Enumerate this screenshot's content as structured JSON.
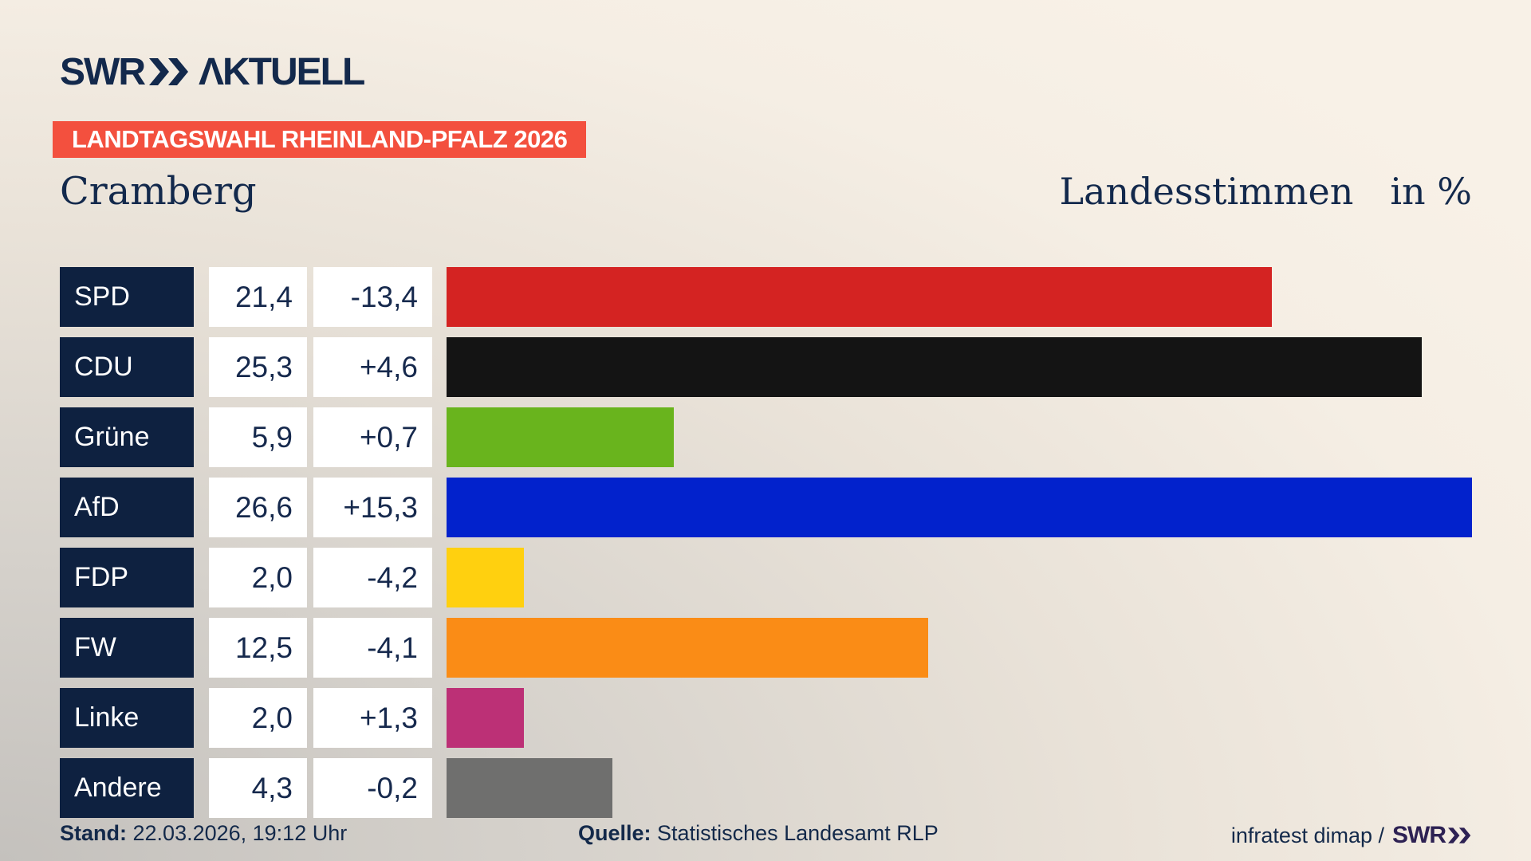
{
  "logo": {
    "swr": "SWR",
    "aktuell": "ΛKTUELL"
  },
  "header": {
    "banner": "LANDTAGSWAHL RHEINLAND-PFALZ 2026",
    "municipality": "Cramberg",
    "measure_label": "Landesstimmen",
    "unit_label": "in %"
  },
  "chart_data": {
    "type": "bar",
    "orientation": "horizontal",
    "title": "Landesstimmen in %",
    "xlim": [
      0,
      26.6
    ],
    "grid": false,
    "legend": "none",
    "categories": [
      "SPD",
      "CDU",
      "Grüne",
      "AfD",
      "FDP",
      "FW",
      "Linke",
      "Andere"
    ],
    "values": [
      21.4,
      25.3,
      5.9,
      26.6,
      2.0,
      12.5,
      2.0,
      4.3
    ],
    "value_labels": [
      "21,4",
      "25,3",
      "5,9",
      "26,6",
      "2,0",
      "12,5",
      "2,0",
      "4,3"
    ],
    "deltas": [
      -13.4,
      4.6,
      0.7,
      15.3,
      -4.2,
      -4.1,
      1.3,
      -0.2
    ],
    "delta_labels": [
      "-13,4",
      "+4,6",
      "+0,7",
      "+15,3",
      "-4,2",
      "-4,1",
      "+1,3",
      "-0,2"
    ],
    "bar_colors": [
      "#d42322",
      "#141414",
      "#69b41d",
      "#0222cc",
      "#ffd00f",
      "#fa8c16",
      "#bc3076",
      "#6f6f6e"
    ]
  },
  "footer": {
    "stand_label": "Stand:",
    "stand_value": "22.03.2026, 19:12 Uhr",
    "quelle_label": "Quelle:",
    "quelle_value": "Statistisches Landesamt RLP",
    "credit_text": "infratest dimap /",
    "credit_logo": "SWR"
  },
  "colors": {
    "background_light": "#f6efe5",
    "background_shade": "#c4c1bd",
    "navy": "#13294c",
    "label_cell_bg": "#0e2140",
    "banner_bg": "#f3503e",
    "banner_text": "#ffffff",
    "credit_logo_color": "#2d2153"
  }
}
